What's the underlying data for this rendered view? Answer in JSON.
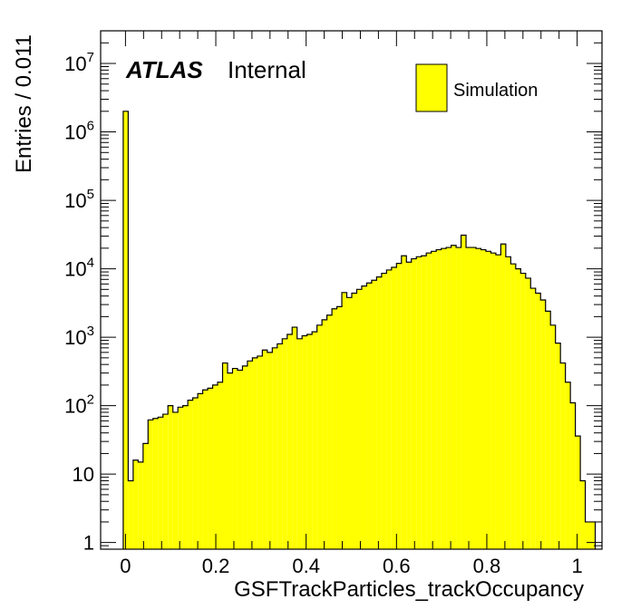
{
  "chart_data": {
    "type": "bar",
    "xlabel": "GSFTrackParticles_trackOccupancy",
    "ylabel": "Entries / 0.011",
    "xlim": [
      -0.055,
      1.055
    ],
    "ylim": [
      0.8,
      30000000
    ],
    "log_y": true,
    "bin_width": 0.011,
    "bin_start": -0.005,
    "x_ticks": [
      {
        "value": 0,
        "label": "0"
      },
      {
        "value": 0.2,
        "label": "0.2"
      },
      {
        "value": 0.4,
        "label": "0.4"
      },
      {
        "value": 0.6,
        "label": "0.6"
      },
      {
        "value": 0.8,
        "label": "0.8"
      },
      {
        "value": 1,
        "label": "1"
      }
    ],
    "y_ticks": [
      {
        "value": 1,
        "base": "1",
        "exp": ""
      },
      {
        "value": 10,
        "base": "10",
        "exp": ""
      },
      {
        "value": 100,
        "base": "10",
        "exp": "2"
      },
      {
        "value": 1000,
        "base": "10",
        "exp": "3"
      },
      {
        "value": 10000,
        "base": "10",
        "exp": "4"
      },
      {
        "value": 100000,
        "base": "10",
        "exp": "5"
      },
      {
        "value": 1000000,
        "base": "10",
        "exp": "6"
      },
      {
        "value": 10000000,
        "base": "10",
        "exp": "7"
      }
    ],
    "series": [
      {
        "name": "Simulation",
        "color": "#ffff00",
        "edge_color": "#000000",
        "values": [
          2000000,
          8,
          16,
          15,
          28,
          62,
          65,
          68,
          75,
          100,
          80,
          95,
          100,
          120,
          130,
          150,
          170,
          180,
          200,
          220,
          420,
          300,
          350,
          330,
          380,
          450,
          500,
          530,
          650,
          600,
          700,
          800,
          950,
          1100,
          1400,
          950,
          1050,
          1100,
          1200,
          1500,
          1800,
          2100,
          2600,
          2800,
          4500,
          3800,
          4400,
          5000,
          5600,
          6200,
          6800,
          7600,
          8600,
          9600,
          10500,
          12000,
          15500,
          12500,
          14000,
          15000,
          15500,
          17000,
          18000,
          19000,
          19800,
          20500,
          22000,
          20500,
          31000,
          20500,
          20500,
          19800,
          19000,
          18000,
          17000,
          16000,
          23000,
          15000,
          11800,
          10000,
          8600,
          7300,
          5200,
          4400,
          3500,
          2400,
          1500,
          820,
          420,
          220,
          110,
          36,
          8,
          2,
          2
        ]
      }
    ],
    "legend": {
      "position": "top-right",
      "entries": [
        "Simulation"
      ]
    },
    "annotations": {
      "atlas": "ATLAS",
      "status": "Internal"
    }
  }
}
